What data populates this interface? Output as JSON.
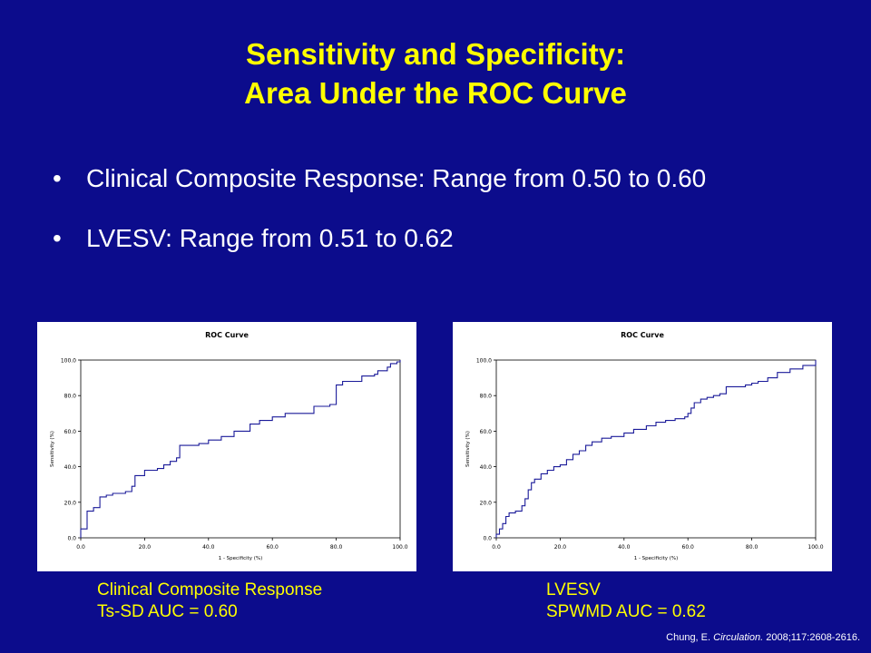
{
  "slide": {
    "title_line1": "Sensitivity and Specificity:",
    "title_line2": "Area Under the ROC Curve",
    "bullets": [
      "Clinical Composite Response: Range from 0.50 to 0.60",
      "LVESV: Range from 0.51 to 0.62"
    ],
    "bullet_symbol": "•",
    "citation": {
      "author": "Chung, E.",
      "journal": "Circulation.",
      "ref": "2008;117:2608-2616."
    }
  },
  "captions": [
    {
      "line1": "Clinical Composite Response",
      "line2": "Ts-SD AUC = 0.60"
    },
    {
      "line1": "LVESV",
      "line2": "SPWMD AUC = 0.62"
    }
  ],
  "colors": {
    "background": "#0c0c8c",
    "title": "#ffff00",
    "text": "#ffffff",
    "curve": "#1a1a99"
  },
  "chart_data": [
    {
      "type": "line",
      "title": "ROC Curve",
      "xlabel": "1 - Specificity (%)",
      "ylabel": "Sensitivity (%)",
      "xlim": [
        0,
        100
      ],
      "ylim": [
        0,
        100
      ],
      "xticks": [
        "0.0",
        "20.0",
        "40.0",
        "60.0",
        "80.0",
        "100.0"
      ],
      "yticks": [
        "0.0",
        "20.0",
        "40.0",
        "60.0",
        "80.0",
        "100.0"
      ],
      "grid": false,
      "step": true,
      "series": [
        {
          "x": [
            0,
            0,
            2,
            2,
            4,
            4,
            6,
            6,
            8,
            8,
            10,
            10,
            14,
            14,
            16,
            16,
            17,
            17,
            20,
            20,
            24,
            24,
            26,
            26,
            28,
            28,
            30,
            30,
            31,
            31,
            37,
            37,
            40,
            40,
            44,
            44,
            48,
            48,
            53,
            53,
            56,
            56,
            60,
            60,
            64,
            64,
            73,
            73,
            78,
            78,
            80,
            80,
            82,
            82,
            88,
            88,
            92,
            92,
            93,
            93,
            96,
            96,
            97,
            97,
            99,
            99,
            100,
            100
          ],
          "y": [
            0,
            5,
            5,
            15,
            15,
            17,
            17,
            23,
            23,
            24,
            24,
            25,
            25,
            26,
            26,
            29,
            29,
            35,
            35,
            38,
            38,
            39,
            39,
            41,
            41,
            43,
            43,
            45,
            45,
            52,
            52,
            53,
            53,
            55,
            55,
            57,
            57,
            60,
            60,
            64,
            64,
            66,
            66,
            68,
            68,
            70,
            70,
            74,
            74,
            75,
            75,
            86,
            86,
            88,
            88,
            91,
            91,
            92,
            92,
            94,
            94,
            96,
            96,
            98,
            98,
            99,
            99,
            100
          ]
        }
      ]
    },
    {
      "type": "line",
      "title": "ROC Curve",
      "xlabel": "1 - Specificity (%)",
      "ylabel": "Sensitivity (%)",
      "xlim": [
        0,
        100
      ],
      "ylim": [
        0,
        100
      ],
      "xticks": [
        "0.0",
        "20.0",
        "40.0",
        "60.0",
        "80.0",
        "100.0"
      ],
      "yticks": [
        "0.0",
        "20.0",
        "40.0",
        "60.0",
        "80.0",
        "100.0"
      ],
      "grid": false,
      "step": true,
      "series": [
        {
          "x": [
            0,
            0,
            1,
            1,
            2,
            2,
            3,
            3,
            4,
            4,
            6,
            6,
            8,
            8,
            9,
            9,
            10,
            10,
            11,
            11,
            12,
            12,
            14,
            14,
            16,
            16,
            18,
            18,
            20,
            20,
            22,
            22,
            24,
            24,
            26,
            26,
            28,
            28,
            30,
            30,
            33,
            33,
            36,
            36,
            40,
            40,
            43,
            43,
            47,
            47,
            50,
            50,
            53,
            53,
            56,
            56,
            59,
            59,
            60,
            60,
            61,
            61,
            62,
            62,
            64,
            64,
            66,
            66,
            68,
            68,
            70,
            70,
            72,
            72,
            78,
            78,
            80,
            80,
            82,
            82,
            85,
            85,
            88,
            88,
            92,
            92,
            96,
            96,
            100,
            100
          ],
          "y": [
            0,
            2,
            2,
            5,
            5,
            8,
            8,
            12,
            12,
            14,
            14,
            15,
            15,
            18,
            18,
            22,
            22,
            27,
            27,
            31,
            31,
            33,
            33,
            36,
            36,
            38,
            38,
            40,
            40,
            41,
            41,
            44,
            44,
            47,
            47,
            49,
            49,
            52,
            52,
            54,
            54,
            56,
            56,
            57,
            57,
            59,
            59,
            61,
            61,
            63,
            63,
            65,
            65,
            66,
            66,
            67,
            67,
            68,
            68,
            70,
            70,
            73,
            73,
            76,
            76,
            78,
            78,
            79,
            79,
            80,
            80,
            81,
            81,
            85,
            85,
            86,
            86,
            87,
            87,
            88,
            88,
            90,
            90,
            93,
            93,
            95,
            95,
            97,
            97,
            100
          ]
        }
      ]
    }
  ]
}
